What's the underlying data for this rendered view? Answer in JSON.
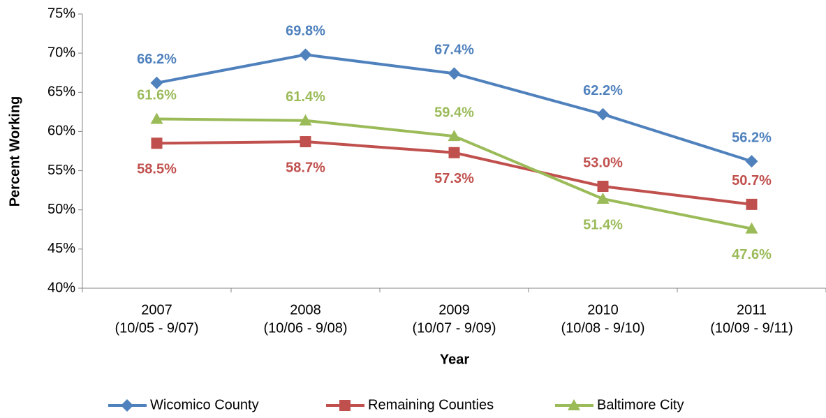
{
  "chart_data": {
    "type": "line",
    "categories": [
      [
        "2007",
        "(10/05 - 9/07)"
      ],
      [
        "2008",
        "(10/06 - 9/08)"
      ],
      [
        "2009",
        "(10/07 - 9/09)"
      ],
      [
        "2010",
        "(10/08 - 9/10)"
      ],
      [
        "2011",
        "(10/09 - 9/11)"
      ]
    ],
    "x_label": "Year",
    "y_label": "Percent Working",
    "ylim": [
      40,
      75
    ],
    "yticks": [
      {
        "value": 40,
        "label": "40%"
      },
      {
        "value": 45,
        "label": "45%"
      },
      {
        "value": 50,
        "label": "50%"
      },
      {
        "value": 55,
        "label": "55%"
      },
      {
        "value": 60,
        "label": "60%"
      },
      {
        "value": 65,
        "label": "65%"
      },
      {
        "value": 70,
        "label": "70%"
      },
      {
        "value": 75,
        "label": "75%"
      }
    ],
    "grid": false,
    "legend": "bottom",
    "series": [
      {
        "name": "Wicomico County",
        "color": "#4F81BD",
        "marker": "diamond",
        "values": [
          66.2,
          69.8,
          67.4,
          62.2,
          56.2
        ],
        "value_labels": [
          "66.2%",
          "69.8%",
          "67.4%",
          "62.2%",
          "56.2%"
        ]
      },
      {
        "name": "Remaining Counties",
        "color": "#C0504D",
        "marker": "square",
        "values": [
          58.5,
          58.7,
          57.3,
          53.0,
          50.7
        ],
        "value_labels": [
          "58.5%",
          "58.7%",
          "57.3%",
          "53.0%",
          "50.7%"
        ]
      },
      {
        "name": "Baltimore City",
        "color": "#9BBB59",
        "marker": "triangle",
        "values": [
          61.6,
          61.4,
          59.4,
          51.4,
          47.6
        ],
        "value_labels": [
          "61.6%",
          "61.4%",
          "59.4%",
          "51.4%",
          "47.6%"
        ]
      }
    ]
  }
}
